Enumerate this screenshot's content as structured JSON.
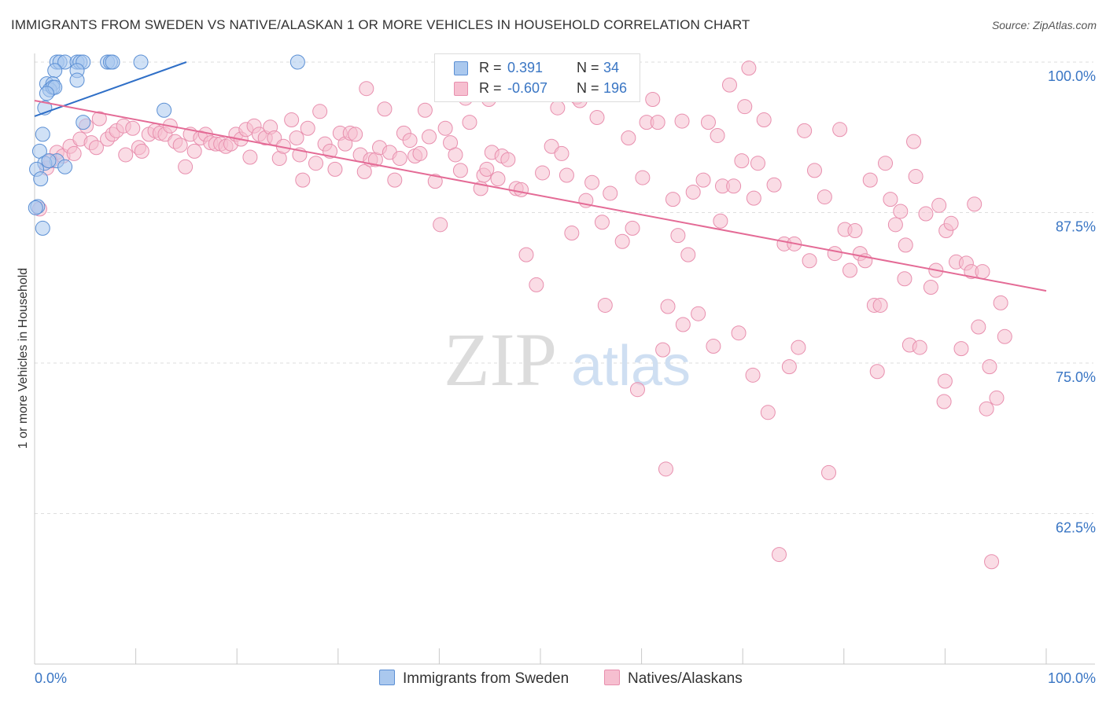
{
  "header": {
    "title": "IMMIGRANTS FROM SWEDEN VS NATIVE/ALASKAN 1 OR MORE VEHICLES IN HOUSEHOLD CORRELATION CHART",
    "source": "Source: ZipAtlas.com"
  },
  "watermark": {
    "zip": "ZIP",
    "atlas": "atlas"
  },
  "legend": {
    "series": [
      {
        "name": "Immigrants from Sweden",
        "r_label": "R =",
        "r_value": "0.391",
        "n_label": "N =",
        "n_value": "34",
        "fill": "#aac8ee",
        "stroke": "#5b8fd4"
      },
      {
        "name": "Natives/Alaskans",
        "r_label": "R =",
        "r_value": "-0.607",
        "n_label": "N =",
        "n_value": "196",
        "fill": "#f6bfd0",
        "stroke": "#e88fae"
      }
    ]
  },
  "chart_data": {
    "type": "scatter",
    "title": "IMMIGRANTS FROM SWEDEN VS NATIVE/ALASKAN 1 OR MORE VEHICLES IN HOUSEHOLD CORRELATION CHART",
    "xlabel": "",
    "ylabel": "1 or more Vehicles in Household",
    "xlim": [
      0,
      100
    ],
    "ylim": [
      50,
      100
    ],
    "x_tick_labels": [
      "0.0%",
      "100.0%"
    ],
    "y_ticks": [
      62.5,
      75.0,
      87.5,
      100.0
    ],
    "y_tick_labels": [
      "62.5%",
      "75.0%",
      "87.5%",
      "100.0%"
    ],
    "grid": true,
    "legend_position": "top-center",
    "colors": {
      "sweden_fill": "#aac8ee",
      "sweden_stroke": "#5b8fd4",
      "sweden_line": "#2f6fc7",
      "natives_fill": "#f6bfd0",
      "natives_stroke": "#e88fae",
      "natives_line": "#e46b96",
      "axis_label": "#3a76c4",
      "grid": "#dedede"
    },
    "series": [
      {
        "name": "Immigrants from Sweden",
        "trend": [
          [
            0.0,
            95.5
          ],
          [
            15.0,
            100.0
          ]
        ],
        "points": [
          [
            2.2,
            100.0
          ],
          [
            2.5,
            100.0
          ],
          [
            3.0,
            100.0
          ],
          [
            4.2,
            100.0
          ],
          [
            4.5,
            100.0
          ],
          [
            4.8,
            100.0
          ],
          [
            7.2,
            100.0
          ],
          [
            7.5,
            100.0
          ],
          [
            7.7,
            100.0
          ],
          [
            10.5,
            100.0
          ],
          [
            26.0,
            100.0
          ],
          [
            2.0,
            99.3
          ],
          [
            4.2,
            99.3
          ],
          [
            1.2,
            98.2
          ],
          [
            1.8,
            98.2
          ],
          [
            4.2,
            98.5
          ],
          [
            1.5,
            97.7
          ],
          [
            1.8,
            97.9
          ],
          [
            2.0,
            97.9
          ],
          [
            1.2,
            97.4
          ],
          [
            1.0,
            96.2
          ],
          [
            12.8,
            96.0
          ],
          [
            4.8,
            95.0
          ],
          [
            0.8,
            94.0
          ],
          [
            0.5,
            92.6
          ],
          [
            2.2,
            91.8
          ],
          [
            1.0,
            91.6
          ],
          [
            3.0,
            91.3
          ],
          [
            0.2,
            91.1
          ],
          [
            0.6,
            90.3
          ],
          [
            0.3,
            88.0
          ],
          [
            0.8,
            86.2
          ],
          [
            0.1,
            87.9
          ],
          [
            1.4,
            91.8
          ]
        ]
      },
      {
        "name": "Natives/Alaskans",
        "trend": [
          [
            0.0,
            96.8
          ],
          [
            100.0,
            81.0
          ]
        ],
        "points": [
          [
            0.5,
            87.8
          ],
          [
            1.2,
            91.2
          ],
          [
            1.6,
            91.8
          ],
          [
            2.2,
            92.5
          ],
          [
            2.8,
            92.2
          ],
          [
            3.5,
            93.0
          ],
          [
            3.9,
            92.4
          ],
          [
            4.5,
            93.6
          ],
          [
            5.1,
            94.7
          ],
          [
            5.6,
            93.3
          ],
          [
            6.1,
            92.9
          ],
          [
            6.4,
            95.3
          ],
          [
            7.2,
            93.6
          ],
          [
            7.7,
            94.0
          ],
          [
            8.1,
            94.3
          ],
          [
            8.8,
            94.7
          ],
          [
            9.0,
            92.3
          ],
          [
            9.7,
            94.5
          ],
          [
            10.3,
            92.9
          ],
          [
            10.6,
            92.6
          ],
          [
            11.3,
            94.0
          ],
          [
            11.9,
            94.3
          ],
          [
            12.4,
            94.1
          ],
          [
            12.9,
            94.0
          ],
          [
            13.4,
            94.7
          ],
          [
            13.9,
            93.4
          ],
          [
            14.4,
            93.1
          ],
          [
            14.9,
            91.3
          ],
          [
            15.4,
            94.0
          ],
          [
            15.8,
            92.6
          ],
          [
            16.4,
            93.7
          ],
          [
            16.9,
            94.0
          ],
          [
            17.4,
            93.3
          ],
          [
            17.9,
            93.2
          ],
          [
            18.4,
            93.2
          ],
          [
            18.9,
            93.0
          ],
          [
            19.4,
            93.2
          ],
          [
            19.9,
            94.0
          ],
          [
            20.4,
            93.6
          ],
          [
            20.9,
            94.4
          ],
          [
            21.3,
            92.1
          ],
          [
            21.7,
            94.7
          ],
          [
            22.2,
            94.0
          ],
          [
            22.8,
            93.7
          ],
          [
            23.3,
            94.6
          ],
          [
            23.7,
            93.7
          ],
          [
            24.2,
            92.0
          ],
          [
            24.6,
            93.0
          ],
          [
            25.4,
            95.2
          ],
          [
            25.9,
            93.7
          ],
          [
            26.2,
            92.3
          ],
          [
            26.5,
            90.2
          ],
          [
            27.0,
            94.5
          ],
          [
            27.8,
            91.6
          ],
          [
            28.2,
            95.9
          ],
          [
            28.7,
            93.2
          ],
          [
            29.2,
            92.6
          ],
          [
            29.7,
            91.1
          ],
          [
            30.2,
            94.1
          ],
          [
            30.7,
            93.2
          ],
          [
            31.2,
            94.1
          ],
          [
            31.7,
            94.0
          ],
          [
            32.2,
            92.3
          ],
          [
            32.6,
            90.9
          ],
          [
            32.8,
            97.8
          ],
          [
            33.2,
            91.9
          ],
          [
            33.7,
            91.9
          ],
          [
            34.1,
            92.9
          ],
          [
            34.6,
            96.1
          ],
          [
            35.1,
            92.5
          ],
          [
            35.6,
            90.2
          ],
          [
            36.1,
            92.0
          ],
          [
            36.5,
            94.1
          ],
          [
            37.1,
            93.5
          ],
          [
            37.6,
            92.2
          ],
          [
            38.1,
            92.4
          ],
          [
            38.6,
            96.0
          ],
          [
            39.0,
            93.8
          ],
          [
            39.6,
            90.1
          ],
          [
            40.1,
            86.5
          ],
          [
            40.6,
            94.5
          ],
          [
            41.1,
            93.3
          ],
          [
            41.6,
            92.3
          ],
          [
            42.1,
            91.0
          ],
          [
            42.6,
            97.0
          ],
          [
            43.0,
            95.0
          ],
          [
            44.1,
            89.5
          ],
          [
            44.4,
            90.6
          ],
          [
            44.7,
            91.1
          ],
          [
            44.9,
            96.9
          ],
          [
            45.2,
            92.5
          ],
          [
            45.8,
            90.3
          ],
          [
            46.2,
            92.2
          ],
          [
            46.8,
            91.9
          ],
          [
            47.6,
            89.5
          ],
          [
            48.1,
            89.4
          ],
          [
            48.6,
            84.0
          ],
          [
            49.6,
            81.5
          ],
          [
            50.2,
            90.8
          ],
          [
            51.1,
            93.0
          ],
          [
            51.7,
            96.2
          ],
          [
            52.1,
            92.4
          ],
          [
            52.6,
            90.6
          ],
          [
            53.1,
            85.8
          ],
          [
            53.6,
            97.1
          ],
          [
            53.9,
            96.8
          ],
          [
            54.5,
            88.5
          ],
          [
            55.1,
            90.0
          ],
          [
            55.6,
            95.4
          ],
          [
            56.1,
            86.7
          ],
          [
            56.4,
            79.8
          ],
          [
            56.9,
            89.1
          ],
          [
            58.1,
            85.1
          ],
          [
            58.7,
            93.7
          ],
          [
            59.1,
            86.2
          ],
          [
            59.6,
            72.8
          ],
          [
            60.1,
            90.4
          ],
          [
            60.5,
            95.0
          ],
          [
            61.1,
            96.9
          ],
          [
            61.6,
            95.0
          ],
          [
            62.1,
            76.1
          ],
          [
            62.4,
            66.2
          ],
          [
            62.6,
            79.7
          ],
          [
            63.1,
            88.6
          ],
          [
            63.6,
            85.6
          ],
          [
            64.0,
            95.1
          ],
          [
            64.1,
            78.2
          ],
          [
            64.6,
            84.0
          ],
          [
            65.1,
            89.2
          ],
          [
            65.6,
            79.1
          ],
          [
            66.1,
            90.2
          ],
          [
            66.6,
            95.0
          ],
          [
            67.1,
            76.4
          ],
          [
            67.5,
            93.9
          ],
          [
            67.8,
            86.8
          ],
          [
            68.0,
            89.7
          ],
          [
            68.7,
            98.1
          ],
          [
            69.1,
            89.7
          ],
          [
            69.6,
            77.5
          ],
          [
            69.9,
            91.8
          ],
          [
            70.2,
            96.3
          ],
          [
            70.6,
            99.5
          ],
          [
            71.1,
            88.7
          ],
          [
            71.5,
            91.6
          ],
          [
            72.1,
            95.2
          ],
          [
            72.5,
            70.9
          ],
          [
            73.1,
            89.8
          ],
          [
            73.6,
            59.1
          ],
          [
            74.1,
            84.9
          ],
          [
            74.6,
            74.7
          ],
          [
            75.1,
            84.9
          ],
          [
            75.5,
            76.3
          ],
          [
            76.1,
            94.3
          ],
          [
            76.6,
            83.5
          ],
          [
            77.1,
            91.0
          ],
          [
            78.1,
            88.8
          ],
          [
            78.5,
            65.9
          ],
          [
            79.1,
            84.1
          ],
          [
            79.6,
            94.4
          ],
          [
            80.1,
            86.1
          ],
          [
            80.6,
            82.7
          ],
          [
            81.1,
            86.0
          ],
          [
            81.6,
            84.1
          ],
          [
            82.1,
            83.5
          ],
          [
            82.6,
            90.2
          ],
          [
            83.0,
            79.8
          ],
          [
            83.3,
            74.3
          ],
          [
            83.6,
            79.8
          ],
          [
            84.1,
            91.6
          ],
          [
            84.6,
            88.6
          ],
          [
            85.1,
            86.5
          ],
          [
            85.6,
            87.6
          ],
          [
            86.1,
            84.8
          ],
          [
            86.5,
            76.5
          ],
          [
            86.9,
            93.4
          ],
          [
            87.1,
            90.5
          ],
          [
            87.5,
            76.3
          ],
          [
            88.1,
            87.4
          ],
          [
            88.6,
            81.3
          ],
          [
            89.1,
            82.7
          ],
          [
            89.4,
            88.1
          ],
          [
            89.9,
            71.8
          ],
          [
            90.1,
            86.0
          ],
          [
            90.6,
            86.6
          ],
          [
            91.1,
            83.4
          ],
          [
            91.6,
            76.2
          ],
          [
            92.1,
            83.3
          ],
          [
            92.6,
            82.6
          ],
          [
            92.9,
            88.2
          ],
          [
            93.3,
            78.0
          ],
          [
            93.7,
            82.6
          ],
          [
            94.1,
            71.2
          ],
          [
            94.4,
            74.7
          ],
          [
            94.6,
            58.5
          ],
          [
            95.1,
            72.1
          ],
          [
            95.5,
            80.0
          ],
          [
            95.9,
            77.2
          ],
          [
            90.0,
            73.5
          ],
          [
            86.0,
            82.0
          ],
          [
            71.0,
            74.0
          ]
        ]
      }
    ]
  }
}
